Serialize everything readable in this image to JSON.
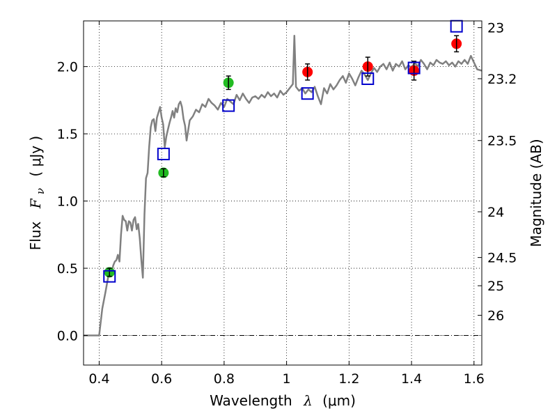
{
  "chart_data": {
    "type": "scatter",
    "xlabel": {
      "text": "Wavelength",
      "symbol": "λ",
      "unit": "(μm)"
    },
    "ylabel": {
      "text": "Flux",
      "symbol": "F",
      "subscript": "ν",
      "unit": "( μJy )"
    },
    "y2label": "Magnitude (AB)",
    "xlim": [
      0.35,
      1.625
    ],
    "ylim": [
      -0.22,
      2.34
    ],
    "x_ticks": [
      0.4,
      0.6,
      0.8,
      1.0,
      1.2,
      1.4,
      1.6
    ],
    "x_tick_labels": [
      "0.4",
      "0.6",
      "0.8",
      "1",
      "1.2",
      "1.4",
      "1.6"
    ],
    "y_ticks": [
      0.0,
      0.5,
      1.0,
      1.5,
      2.0
    ],
    "y_tick_labels": [
      "0.0",
      "0.5",
      "1.0",
      "1.5",
      "2.0"
    ],
    "y2_ticks": [
      {
        "label": "23",
        "flux": 2.29
      },
      {
        "label": "23.2",
        "flux": 1.91
      },
      {
        "label": "23.5",
        "flux": 1.45
      },
      {
        "label": "24",
        "flux": 0.92
      },
      {
        "label": "24.5",
        "flux": 0.58
      },
      {
        "label": "25",
        "flux": 0.37
      },
      {
        "label": "26",
        "flux": 0.15
      }
    ],
    "grid": true,
    "colors": {
      "template": "#808080",
      "green": "#22bb22",
      "red": "#ff0000",
      "model": "#0000cc",
      "zero_line": "#000000"
    },
    "series": [
      {
        "kind": "line",
        "points": [
          [
            0.35,
            0.0
          ],
          [
            0.4,
            0.0
          ],
          [
            0.41,
            0.2
          ],
          [
            0.42,
            0.32
          ],
          [
            0.43,
            0.45
          ],
          [
            0.44,
            0.47
          ],
          [
            0.445,
            0.52
          ],
          [
            0.45,
            0.55
          ],
          [
            0.455,
            0.56
          ],
          [
            0.46,
            0.6
          ],
          [
            0.465,
            0.55
          ],
          [
            0.47,
            0.75
          ],
          [
            0.475,
            0.89
          ],
          [
            0.48,
            0.86
          ],
          [
            0.485,
            0.85
          ],
          [
            0.49,
            0.78
          ],
          [
            0.495,
            0.85
          ],
          [
            0.5,
            0.84
          ],
          [
            0.505,
            0.78
          ],
          [
            0.51,
            0.86
          ],
          [
            0.515,
            0.88
          ],
          [
            0.52,
            0.79
          ],
          [
            0.525,
            0.83
          ],
          [
            0.53,
            0.72
          ],
          [
            0.535,
            0.56
          ],
          [
            0.54,
            0.43
          ],
          [
            0.545,
            0.9
          ],
          [
            0.55,
            1.17
          ],
          [
            0.555,
            1.21
          ],
          [
            0.56,
            1.4
          ],
          [
            0.565,
            1.55
          ],
          [
            0.57,
            1.6
          ],
          [
            0.575,
            1.61
          ],
          [
            0.58,
            1.52
          ],
          [
            0.585,
            1.62
          ],
          [
            0.59,
            1.66
          ],
          [
            0.595,
            1.7
          ],
          [
            0.6,
            1.62
          ],
          [
            0.605,
            1.57
          ],
          [
            0.61,
            1.4
          ],
          [
            0.615,
            1.48
          ],
          [
            0.62,
            1.53
          ],
          [
            0.625,
            1.58
          ],
          [
            0.63,
            1.62
          ],
          [
            0.635,
            1.67
          ],
          [
            0.64,
            1.62
          ],
          [
            0.645,
            1.69
          ],
          [
            0.65,
            1.66
          ],
          [
            0.655,
            1.72
          ],
          [
            0.66,
            1.74
          ],
          [
            0.665,
            1.7
          ],
          [
            0.67,
            1.61
          ],
          [
            0.675,
            1.56
          ],
          [
            0.68,
            1.45
          ],
          [
            0.69,
            1.6
          ],
          [
            0.7,
            1.63
          ],
          [
            0.71,
            1.68
          ],
          [
            0.72,
            1.66
          ],
          [
            0.73,
            1.72
          ],
          [
            0.74,
            1.7
          ],
          [
            0.75,
            1.76
          ],
          [
            0.76,
            1.73
          ],
          [
            0.77,
            1.71
          ],
          [
            0.78,
            1.68
          ],
          [
            0.79,
            1.73
          ],
          [
            0.8,
            1.7
          ],
          [
            0.81,
            1.76
          ],
          [
            0.82,
            1.74
          ],
          [
            0.83,
            1.72
          ],
          [
            0.84,
            1.79
          ],
          [
            0.85,
            1.75
          ],
          [
            0.86,
            1.8
          ],
          [
            0.87,
            1.76
          ],
          [
            0.88,
            1.73
          ],
          [
            0.89,
            1.77
          ],
          [
            0.9,
            1.78
          ],
          [
            0.91,
            1.76
          ],
          [
            0.92,
            1.79
          ],
          [
            0.93,
            1.77
          ],
          [
            0.94,
            1.81
          ],
          [
            0.95,
            1.78
          ],
          [
            0.96,
            1.8
          ],
          [
            0.97,
            1.77
          ],
          [
            0.98,
            1.82
          ],
          [
            0.99,
            1.79
          ],
          [
            1.0,
            1.81
          ],
          [
            1.01,
            1.84
          ],
          [
            1.02,
            1.87
          ],
          [
            1.025,
            2.23
          ],
          [
            1.03,
            1.85
          ],
          [
            1.04,
            1.82
          ],
          [
            1.05,
            1.84
          ],
          [
            1.06,
            1.8
          ],
          [
            1.07,
            1.83
          ],
          [
            1.08,
            1.81
          ],
          [
            1.09,
            1.85
          ],
          [
            1.1,
            1.78
          ],
          [
            1.11,
            1.72
          ],
          [
            1.12,
            1.84
          ],
          [
            1.13,
            1.8
          ],
          [
            1.14,
            1.87
          ],
          [
            1.15,
            1.83
          ],
          [
            1.16,
            1.86
          ],
          [
            1.17,
            1.9
          ],
          [
            1.18,
            1.93
          ],
          [
            1.19,
            1.88
          ],
          [
            1.2,
            1.95
          ],
          [
            1.21,
            1.91
          ],
          [
            1.22,
            1.86
          ],
          [
            1.23,
            1.92
          ],
          [
            1.24,
            1.97
          ],
          [
            1.25,
            1.94
          ],
          [
            1.26,
            1.9
          ],
          [
            1.27,
            1.95
          ],
          [
            1.28,
            1.99
          ],
          [
            1.29,
            1.96
          ],
          [
            1.3,
            2.0
          ],
          [
            1.31,
            2.02
          ],
          [
            1.32,
            1.98
          ],
          [
            1.33,
            2.03
          ],
          [
            1.34,
            1.97
          ],
          [
            1.35,
            2.02
          ],
          [
            1.36,
            2.0
          ],
          [
            1.37,
            2.04
          ],
          [
            1.38,
            1.98
          ],
          [
            1.39,
            2.01
          ],
          [
            1.4,
            1.99
          ],
          [
            1.41,
            2.03
          ],
          [
            1.42,
            2.0
          ],
          [
            1.43,
            2.05
          ],
          [
            1.44,
            2.02
          ],
          [
            1.45,
            1.98
          ],
          [
            1.46,
            2.03
          ],
          [
            1.47,
            2.01
          ],
          [
            1.48,
            2.05
          ],
          [
            1.49,
            2.03
          ],
          [
            1.5,
            2.02
          ],
          [
            1.51,
            2.04
          ],
          [
            1.52,
            2.01
          ],
          [
            1.53,
            2.03
          ],
          [
            1.54,
            2.0
          ],
          [
            1.55,
            2.04
          ],
          [
            1.56,
            2.02
          ],
          [
            1.57,
            2.05
          ],
          [
            1.58,
            2.02
          ],
          [
            1.59,
            2.08
          ],
          [
            1.6,
            2.03
          ],
          [
            1.61,
            1.98
          ],
          [
            1.625,
            1.97
          ]
        ]
      },
      {
        "kind": "points",
        "marker": "circle",
        "color": "green",
        "points": [
          {
            "x": 0.433,
            "y": 0.47,
            "err": 0.03
          },
          {
            "x": 0.606,
            "y": 1.21,
            "err": 0.03
          },
          {
            "x": 0.814,
            "y": 1.88,
            "err": 0.05
          }
        ]
      },
      {
        "kind": "points",
        "marker": "circle",
        "color": "red",
        "points": [
          {
            "x": 1.067,
            "y": 1.96,
            "err": 0.06
          },
          {
            "x": 1.26,
            "y": 2.0,
            "err": 0.07
          },
          {
            "x": 1.408,
            "y": 1.97,
            "err": 0.07
          },
          {
            "x": 1.544,
            "y": 2.17,
            "err": 0.06
          }
        ]
      },
      {
        "kind": "points",
        "marker": "square",
        "color": "model",
        "points": [
          {
            "x": 0.433,
            "y": 0.44
          },
          {
            "x": 0.606,
            "y": 1.35
          },
          {
            "x": 0.814,
            "y": 1.71
          },
          {
            "x": 1.067,
            "y": 1.8
          },
          {
            "x": 1.26,
            "y": 1.91
          },
          {
            "x": 1.408,
            "y": 1.99
          },
          {
            "x": 1.544,
            "y": 2.3
          }
        ]
      }
    ]
  }
}
